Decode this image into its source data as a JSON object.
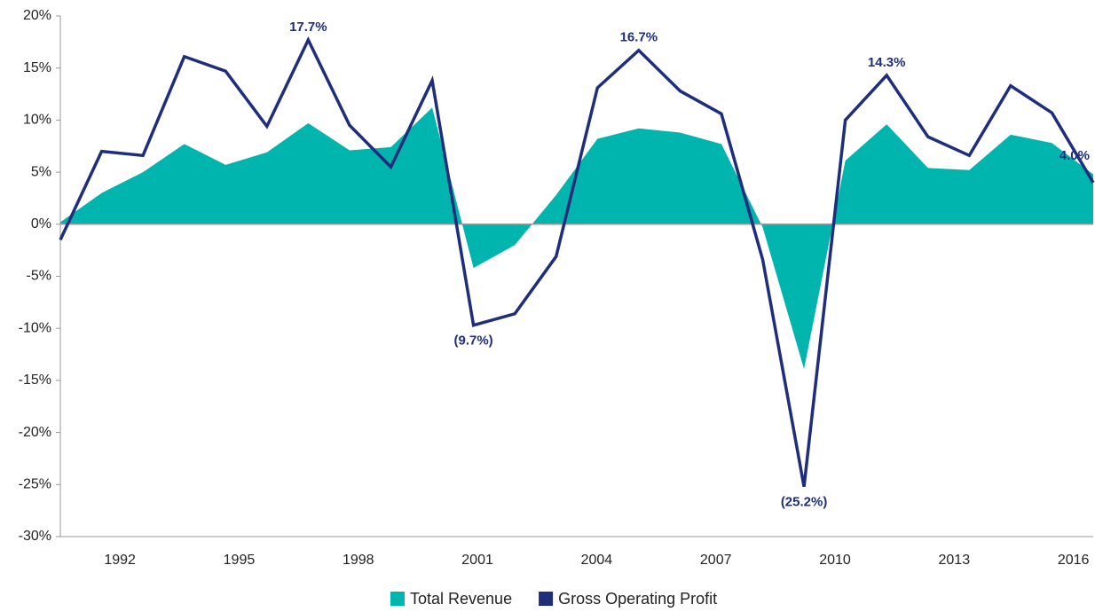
{
  "chart_data": {
    "type": "line-area",
    "categories": [
      null,
      "1992",
      null,
      null,
      "1995",
      null,
      null,
      "1998",
      null,
      null,
      "2001",
      null,
      null,
      "2004",
      null,
      null,
      "2007",
      null,
      null,
      "2010",
      null,
      null,
      "2013",
      null,
      null,
      "2016"
    ],
    "series": [
      {
        "name": "Total Revenue",
        "color": "#00b5ad",
        "kind": "area",
        "values": [
          0.2,
          3.0,
          5.0,
          7.7,
          5.7,
          6.9,
          9.7,
          7.1,
          7.4,
          11.2,
          -4.2,
          -2.0,
          2.8,
          8.2,
          9.2,
          8.8,
          7.7,
          -0.3,
          -13.9,
          6.1,
          9.6,
          5.4,
          5.2,
          8.6,
          7.8,
          4.8
        ]
      },
      {
        "name": "Gross Operating Profit",
        "color": "#1f2d7d",
        "kind": "line",
        "values": [
          -1.5,
          7.0,
          6.6,
          16.1,
          14.7,
          9.4,
          17.7,
          9.5,
          5.5,
          13.8,
          -9.7,
          -8.6,
          -3.1,
          13.1,
          16.7,
          12.8,
          10.6,
          -3.4,
          -25.2,
          10.0,
          14.3,
          8.4,
          6.6,
          13.3,
          10.7,
          4.0
        ],
        "value_labels": [
          null,
          null,
          null,
          null,
          null,
          null,
          "17.7%",
          null,
          null,
          null,
          "(9.7%)",
          null,
          null,
          null,
          "16.7%",
          null,
          null,
          null,
          "(25.2%)",
          null,
          "14.3%",
          null,
          null,
          null,
          null,
          "4.0%"
        ]
      }
    ],
    "ylim": [
      -30,
      20
    ],
    "yticks": [
      {
        "value": -30,
        "label": "-30%"
      },
      {
        "value": -25,
        "label": "-25%"
      },
      {
        "value": -20,
        "label": "-20%"
      },
      {
        "value": -15,
        "label": "-15%"
      },
      {
        "value": -10,
        "label": "-10%"
      },
      {
        "value": -5,
        "label": "-5%"
      },
      {
        "value": 0,
        "label": "0%"
      },
      {
        "value": 5,
        "label": "5%"
      },
      {
        "value": 10,
        "label": "10%"
      },
      {
        "value": 15,
        "label": "15%"
      },
      {
        "value": 20,
        "label": "20%"
      }
    ],
    "grid": false,
    "legend": "bottom"
  }
}
